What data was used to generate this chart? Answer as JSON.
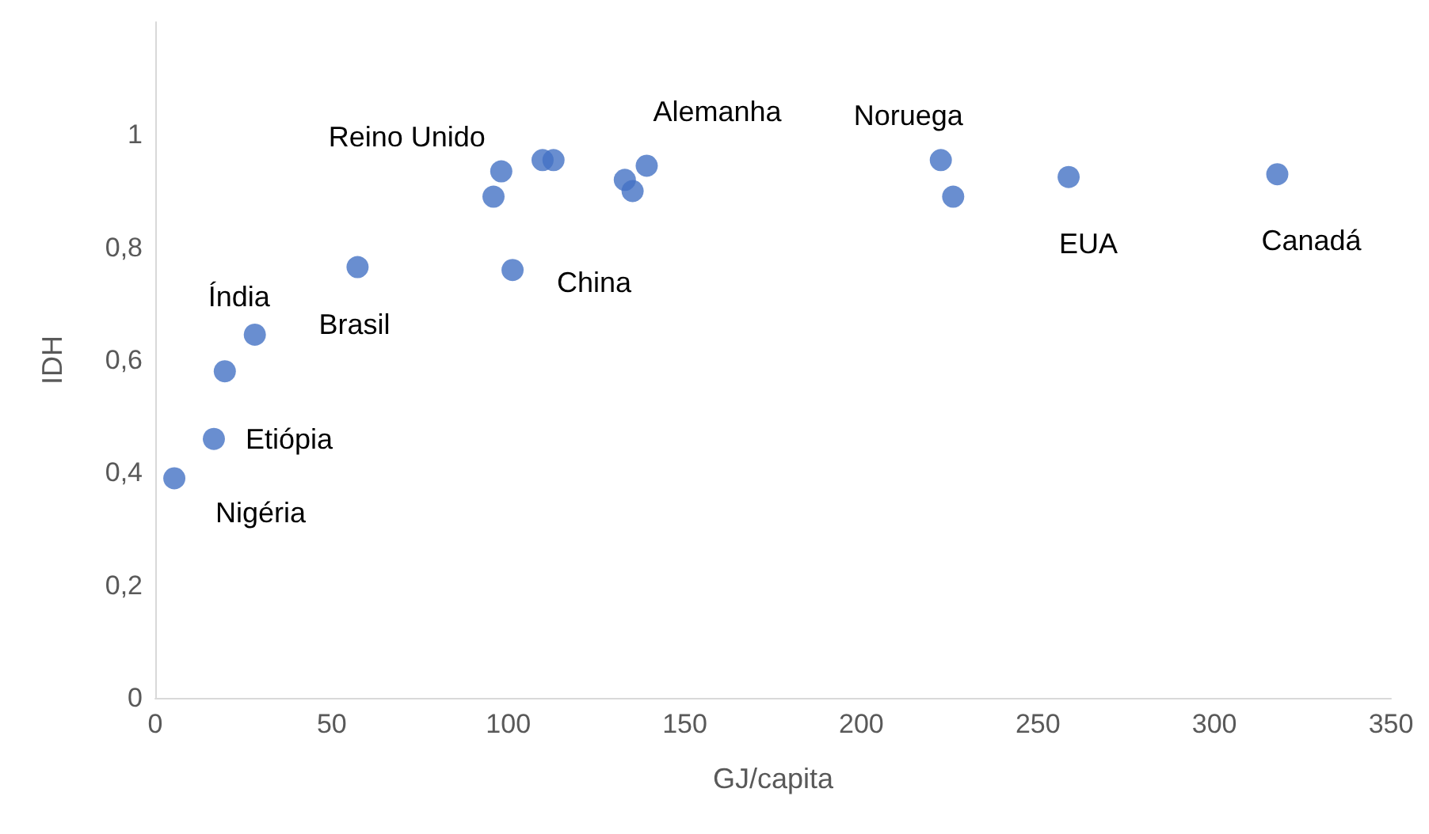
{
  "chart_data": {
    "type": "scatter",
    "xlabel": "GJ/capita",
    "ylabel": "IDH",
    "x": [
      5.4,
      16.6,
      19.7,
      28.2,
      57.3,
      95.8,
      98,
      101.2,
      109.7,
      112.8,
      133,
      135.2,
      139.2,
      222.5,
      226,
      258.7,
      317.8
    ],
    "series": [
      {
        "color": "#4472c4",
        "values": [
          0.39,
          0.46,
          0.58,
          0.645,
          0.765,
          0.89,
          0.935,
          0.76,
          0.955,
          0.955,
          0.92,
          0.9,
          0.945,
          0.955,
          0.89,
          0.925,
          0.93
        ]
      }
    ],
    "xlim": [
      0,
      350
    ],
    "xticks": [
      0,
      50,
      100,
      150,
      200,
      250,
      300,
      350
    ],
    "ylim": [
      0,
      1.2
    ],
    "yticks": [
      {
        "value": 0,
        "label": "0"
      },
      {
        "value": 0.2,
        "label": "0,2"
      },
      {
        "value": 0.4,
        "label": "0,4"
      },
      {
        "value": 0.6,
        "label": "0,6"
      },
      {
        "value": 0.8,
        "label": "0,8"
      },
      {
        "value": 1,
        "label": "1"
      }
    ],
    "annotations": [
      {
        "text": "Nigéria",
        "x": 5.4,
        "y": 0.39
      },
      {
        "text": "Etiópia",
        "x": 16.6,
        "y": 0.46
      },
      {
        "text": "Índia",
        "x": 28.2,
        "y": 0.645
      },
      {
        "text": "Brasil",
        "x": 57.3,
        "y": 0.765
      },
      {
        "text": "Reino Unido",
        "x": 98,
        "y": 0.935
      },
      {
        "text": "China",
        "x": 101.2,
        "y": 0.76
      },
      {
        "text": "Alemanha",
        "x": 139.2,
        "y": 0.945
      },
      {
        "text": "Noruega",
        "x": 222.5,
        "y": 0.955
      },
      {
        "text": "EUA",
        "x": 258.7,
        "y": 0.925
      },
      {
        "text": "Canadá",
        "x": 317.8,
        "y": 0.93
      }
    ],
    "grid": false,
    "marker": "circle"
  }
}
